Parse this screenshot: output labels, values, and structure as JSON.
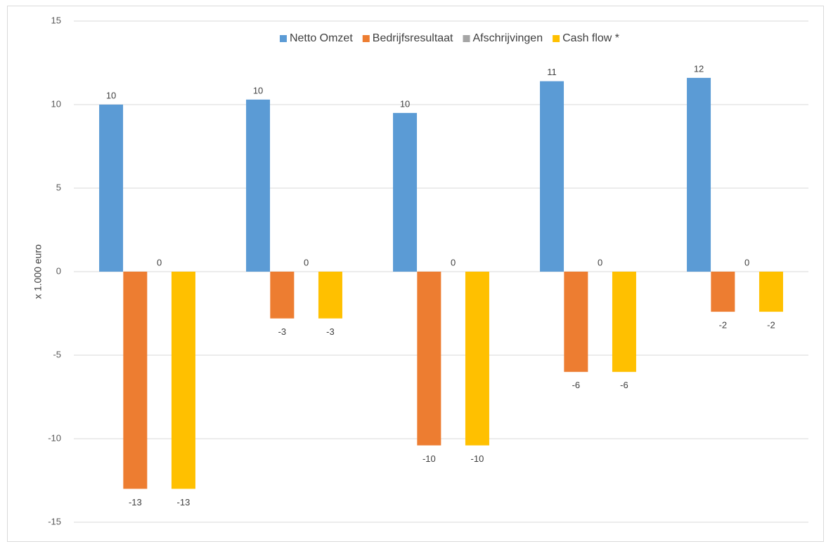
{
  "chart_data": {
    "type": "bar",
    "ylabel": "x 1.000 euro",
    "ylim": [
      -15,
      15
    ],
    "yticks": [
      15,
      10,
      5,
      0,
      -5,
      -10,
      -15
    ],
    "grid": true,
    "legend_position": "top",
    "categories": [
      "",
      "",
      "",
      "",
      ""
    ],
    "series": [
      {
        "name": "Netto Omzet",
        "color": "#5b9bd5",
        "values": [
          10.0,
          10.3,
          9.5,
          11.4,
          11.6
        ],
        "labels": [
          "10",
          "10",
          "10",
          "11",
          "12"
        ]
      },
      {
        "name": "Bedrijfsresultaat",
        "color": "#ed7d31",
        "values": [
          -13.0,
          -2.8,
          -10.4,
          -6.0,
          -2.4
        ],
        "labels": [
          "-13",
          "-3",
          "-10",
          "-6",
          "-2"
        ]
      },
      {
        "name": "Afschrijvingen",
        "color": "#a5a5a5",
        "values": [
          0,
          0,
          0,
          0,
          0
        ],
        "labels": [
          "0",
          "0",
          "0",
          "0",
          "0"
        ]
      },
      {
        "name": "Cash flow *",
        "color": "#ffc000",
        "values": [
          -13.0,
          -2.8,
          -10.4,
          -6.0,
          -2.4
        ],
        "labels": [
          "-13",
          "-3",
          "-10",
          "-6",
          "-2"
        ]
      }
    ]
  }
}
